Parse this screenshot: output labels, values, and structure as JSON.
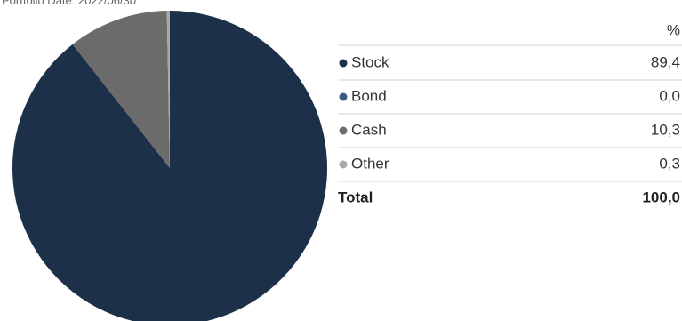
{
  "chart_data": {
    "type": "pie",
    "subtitle": "Portfolio Date: 2022/06/30",
    "value_header": "%",
    "categories": [
      "Stock",
      "Bond",
      "Cash",
      "Other"
    ],
    "values": [
      89.4,
      0.0,
      10.3,
      0.3
    ],
    "value_labels": [
      "89,4",
      "0,0",
      "10,3",
      "0,3"
    ],
    "colors": [
      "#1c3049",
      "#3d5b82",
      "#6b6b6b",
      "#a9a9a9"
    ],
    "total": {
      "label": "Total",
      "value": 100,
      "value_label": "100,0"
    }
  }
}
